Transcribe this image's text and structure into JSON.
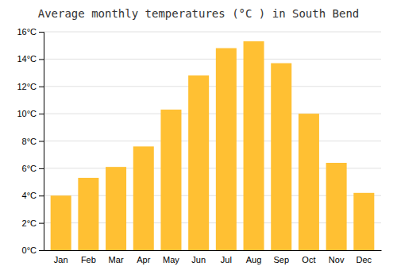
{
  "chart_data": {
    "type": "bar",
    "title": "Average monthly temperatures (°C ) in South Bend",
    "categories": [
      "Jan",
      "Feb",
      "Mar",
      "Apr",
      "May",
      "Jun",
      "Jul",
      "Aug",
      "Sep",
      "Oct",
      "Nov",
      "Dec"
    ],
    "values": [
      4.0,
      5.3,
      6.1,
      7.6,
      10.3,
      12.8,
      14.8,
      15.3,
      13.7,
      10.0,
      6.4,
      4.2
    ],
    "color": "#FFC033",
    "ylim": [
      0,
      16
    ],
    "yticks": [
      {
        "value": 0,
        "label": "0°C"
      },
      {
        "value": 2,
        "label": "2°C"
      },
      {
        "value": 4,
        "label": "4°C"
      },
      {
        "value": 6,
        "label": "6°C"
      },
      {
        "value": 8,
        "label": "8°C"
      },
      {
        "value": 10,
        "label": "10°C"
      },
      {
        "value": 12,
        "label": "12°C"
      },
      {
        "value": 14,
        "label": "14°C"
      },
      {
        "value": 16,
        "label": "16°C"
      }
    ],
    "grid": true
  }
}
